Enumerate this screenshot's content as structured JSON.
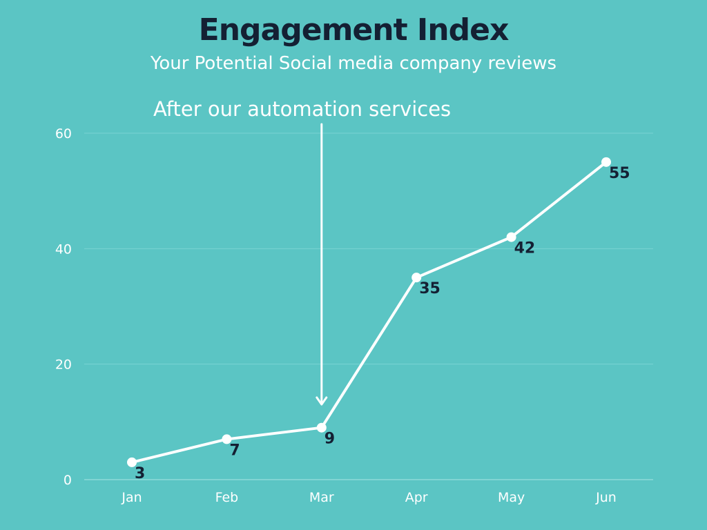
{
  "chart_data": {
    "type": "line",
    "title": "Engagement Index",
    "subtitle": "Your Potential Social media company reviews",
    "categories": [
      "Jan",
      "Feb",
      "Mar",
      "Apr",
      "May",
      "Jun"
    ],
    "series": [
      {
        "values": [
          3,
          7,
          9,
          35,
          42,
          55
        ]
      }
    ],
    "data_labels": [
      "3",
      "7",
      "9",
      "35",
      "42",
      "55"
    ],
    "ylim": [
      0,
      60
    ],
    "yticks": [
      0,
      20,
      40,
      60
    ],
    "xlabel": "",
    "ylabel": "",
    "grid": true,
    "annotation": {
      "text": "After our automation services",
      "points_to": "Mar"
    },
    "colors": {
      "background": "#5bc5c4",
      "line": "#ffffff",
      "title": "#142033",
      "data_label": "#142033",
      "grid": "#7ad4d3",
      "axis_text": "#ffffff"
    }
  }
}
